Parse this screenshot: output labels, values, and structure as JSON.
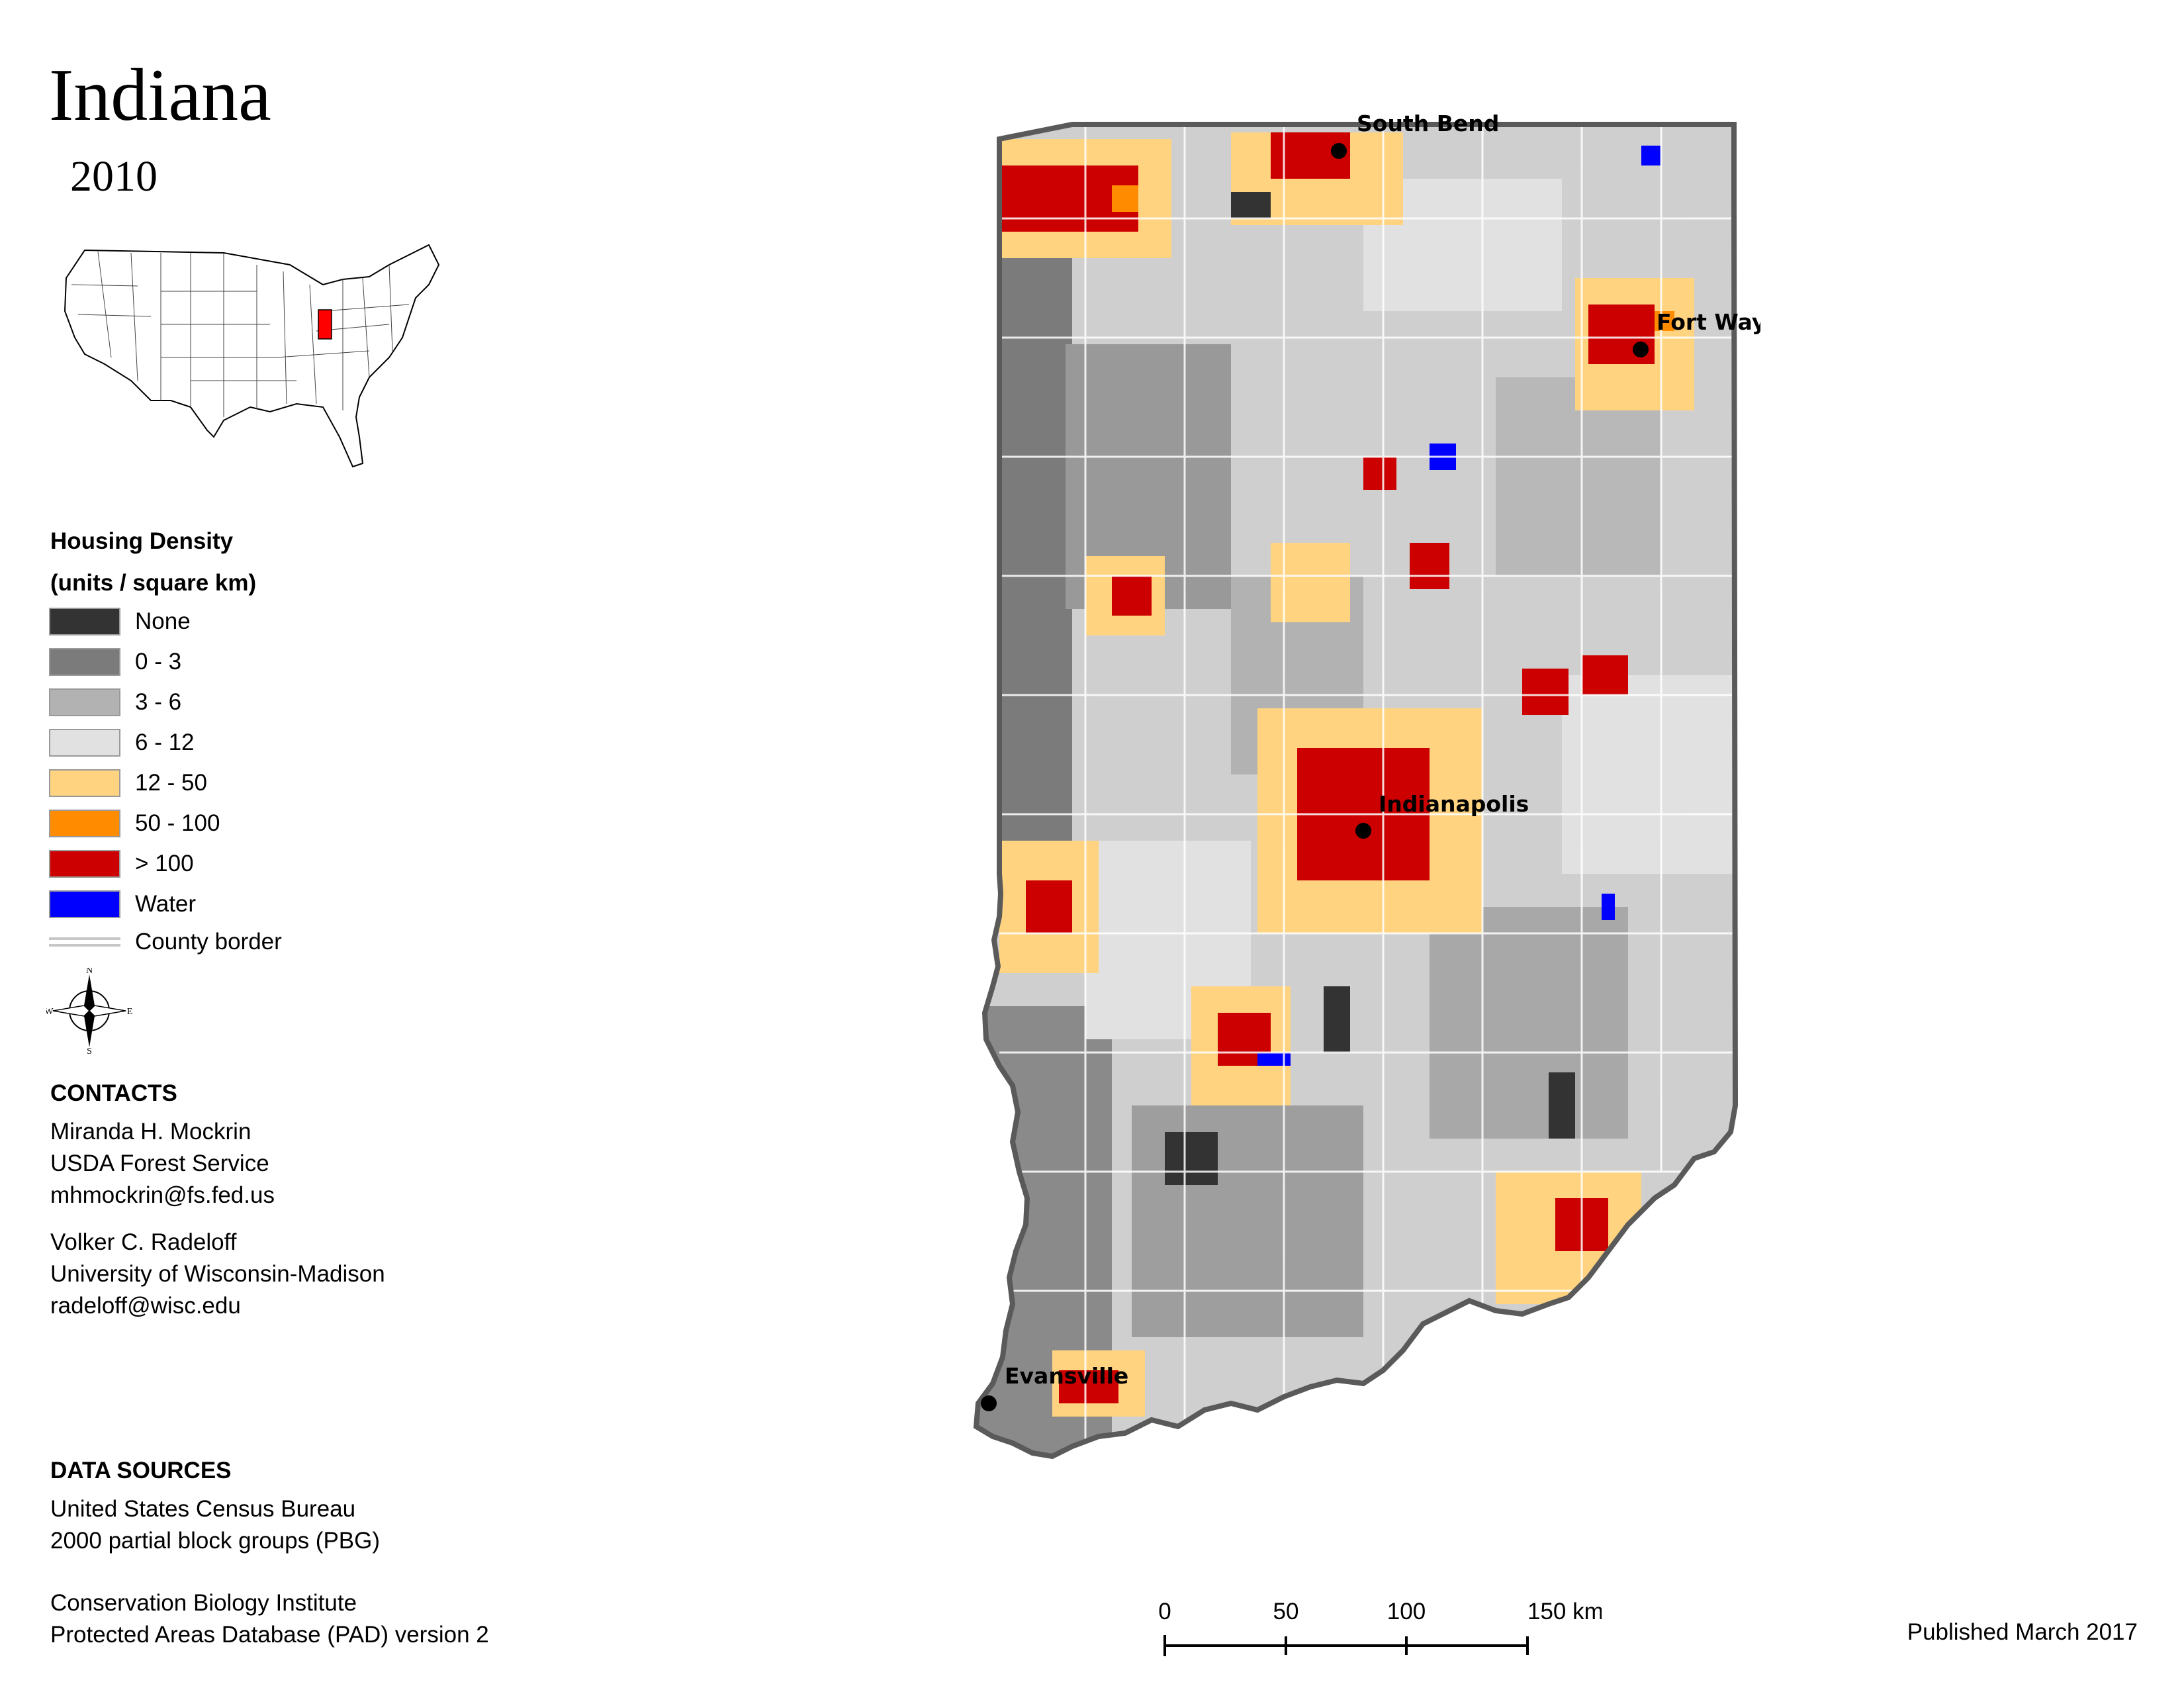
{
  "title": "Indiana",
  "year": "2010",
  "legend": {
    "title_line1": "Housing Density",
    "title_line2": "(units / square km)",
    "items": [
      {
        "label": "None",
        "color": "#333333"
      },
      {
        "label": "0 - 3",
        "color": "#7b7b7b"
      },
      {
        "label": "3 - 6",
        "color": "#b2b2b2"
      },
      {
        "label": "6 - 12",
        "color": "#e1e1e1"
      },
      {
        "label": "12 - 50",
        "color": "#ffd37f"
      },
      {
        "label": "50 - 100",
        "color": "#ff8c00"
      },
      {
        "label": "> 100",
        "color": "#cc0000"
      },
      {
        "label": "Water",
        "color": "#0000ff"
      }
    ],
    "border_label": "County border",
    "border_color": "#c7c7c7"
  },
  "compass": {
    "n": "N",
    "s": "S",
    "e": "E",
    "w": "W"
  },
  "contacts": {
    "heading": "CONTACTS",
    "people": [
      {
        "name": "Miranda H. Mockrin",
        "org": "USDA Forest Service",
        "email": "mhmockrin@fs.fed.us"
      },
      {
        "name": "Volker C. Radeloff",
        "org": "University of Wisconsin-Madison",
        "email": "radeloff@wisc.edu"
      }
    ]
  },
  "data_sources": {
    "heading": "DATA SOURCES",
    "sources": [
      {
        "line1": "United States Census Bureau",
        "line2": "2000 partial block groups (PBG)"
      },
      {
        "line1": "Conservation Biology Institute",
        "line2": "Protected Areas Database (PAD) version 2"
      }
    ]
  },
  "cities": [
    {
      "name": "South Bend"
    },
    {
      "name": "Fort Wayne"
    },
    {
      "name": "Indianapolis"
    },
    {
      "name": "Evansville"
    }
  ],
  "scale": {
    "labels": [
      "0",
      "50",
      "100",
      "150 km"
    ]
  },
  "published": "Published March 2017",
  "highlight_color": "#ff0000"
}
